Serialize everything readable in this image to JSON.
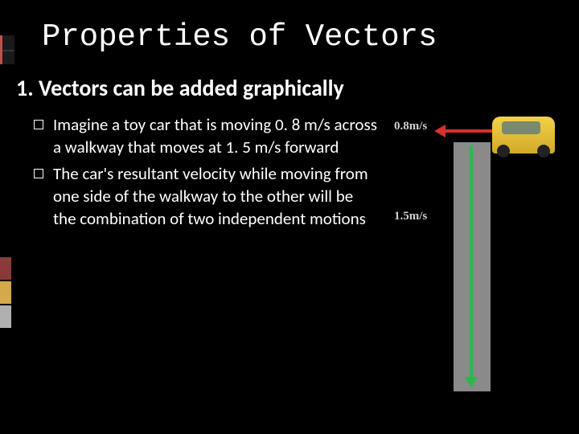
{
  "title": "Properties of Vectors",
  "subtitle": "1. Vectors can be added graphically",
  "bullets": [
    "Imagine a toy car that is moving 0. 8 m/s across a walkway that moves at 1. 5 m/s forward",
    "The car's resultant velocity while moving from one side of the walkway to the other will be the combination of two independent motions"
  ],
  "figure": {
    "label_horizontal": "0.8m/s",
    "label_vertical": "1.5m/s",
    "arrow_horizontal_color": "#d93030",
    "arrow_vertical_color": "#2fb84a",
    "walkway_color": "#8a8a8a",
    "car_color": "#d4a82a"
  },
  "colors": {
    "background": "#000000",
    "text": "#ffffff"
  }
}
